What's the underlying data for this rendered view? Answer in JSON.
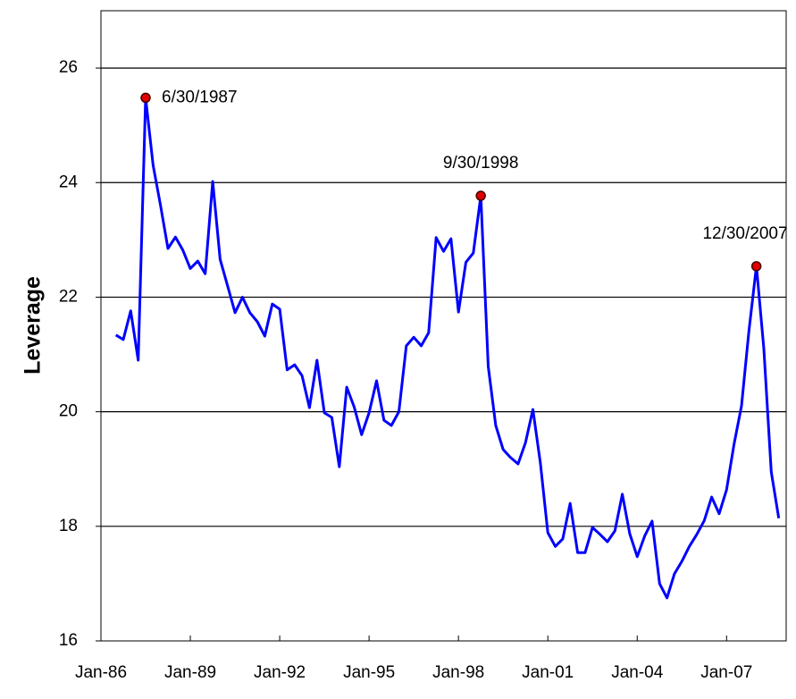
{
  "chart_data": {
    "type": "line",
    "y_label": "Leverage",
    "color": "#0000ff",
    "x": [
      1986.5,
      1986.75,
      1987.0,
      1987.25,
      1987.5,
      1987.75,
      1988.0,
      1988.25,
      1988.5,
      1988.75,
      1989.0,
      1989.25,
      1989.5,
      1989.75,
      1990.0,
      1990.25,
      1990.5,
      1990.75,
      1991.0,
      1991.25,
      1991.5,
      1991.75,
      1992.0,
      1992.25,
      1992.5,
      1992.75,
      1993.0,
      1993.25,
      1993.5,
      1993.75,
      1994.0,
      1994.25,
      1994.5,
      1994.75,
      1995.0,
      1995.25,
      1995.5,
      1995.75,
      1996.0,
      1996.25,
      1996.5,
      1996.75,
      1997.0,
      1997.25,
      1997.5,
      1997.75,
      1998.0,
      1998.25,
      1998.5,
      1998.75,
      1999.0,
      1999.25,
      1999.5,
      1999.75,
      2000.0,
      2000.25,
      2000.5,
      2000.75,
      2001.0,
      2001.25,
      2001.5,
      2001.75,
      2002.0,
      2002.25,
      2002.5,
      2002.75,
      2003.0,
      2003.25,
      2003.5,
      2003.75,
      2004.0,
      2004.25,
      2004.5,
      2004.75,
      2005.0,
      2005.25,
      2005.5,
      2005.75,
      2006.0,
      2006.25,
      2006.5,
      2006.75,
      2007.0,
      2007.25,
      2007.5,
      2007.75,
      2008.0,
      2008.25,
      2008.5,
      2008.75
    ],
    "values": [
      21.34,
      21.26,
      21.76,
      20.9,
      25.48,
      24.3,
      23.6,
      22.85,
      23.05,
      22.82,
      22.5,
      22.63,
      22.41,
      24.02,
      22.66,
      22.2,
      21.73,
      22.0,
      21.73,
      21.57,
      21.32,
      21.88,
      21.79,
      20.73,
      20.82,
      20.63,
      20.07,
      20.9,
      19.98,
      19.9,
      19.04,
      20.43,
      20.08,
      19.6,
      19.98,
      20.54,
      19.85,
      19.76,
      20.0,
      21.15,
      21.3,
      21.15,
      21.38,
      23.04,
      22.8,
      23.02,
      21.74,
      22.61,
      22.77,
      23.77,
      20.79,
      19.76,
      19.34,
      19.2,
      19.09,
      19.46,
      20.04,
      19.1,
      17.89,
      17.65,
      17.78,
      18.4,
      17.54,
      17.54,
      17.98,
      17.86,
      17.73,
      17.92,
      18.56,
      17.87,
      17.47,
      17.83,
      18.09,
      17.0,
      16.75,
      17.17,
      17.39,
      17.65,
      17.86,
      18.1,
      18.51,
      18.22,
      18.64,
      19.43,
      20.1,
      21.41,
      22.54,
      21.1,
      18.95,
      18.14
    ],
    "xlim": [
      1986,
      2009
    ],
    "xticks": [
      {
        "value": 1986,
        "label": "Jan-86"
      },
      {
        "value": 1989,
        "label": "Jan-89"
      },
      {
        "value": 1992,
        "label": "Jan-92"
      },
      {
        "value": 1995,
        "label": "Jan-95"
      },
      {
        "value": 1998,
        "label": "Jan-98"
      },
      {
        "value": 2001,
        "label": "Jan-01"
      },
      {
        "value": 2004,
        "label": "Jan-04"
      },
      {
        "value": 2007,
        "label": "Jan-07"
      }
    ],
    "ylim": [
      16,
      27
    ],
    "yticks": [
      16,
      18,
      20,
      22,
      24,
      26
    ],
    "grid": true,
    "annotations": [
      {
        "text": "6/30/1987",
        "x": 1987.5,
        "y": 25.48,
        "marker_color": "#e00000"
      },
      {
        "text": "9/30/1998",
        "x": 1998.75,
        "y": 23.77,
        "marker_color": "#e00000"
      },
      {
        "text": "12/30/2007",
        "x": 2008.0,
        "y": 22.54,
        "marker_color": "#e00000"
      }
    ]
  }
}
